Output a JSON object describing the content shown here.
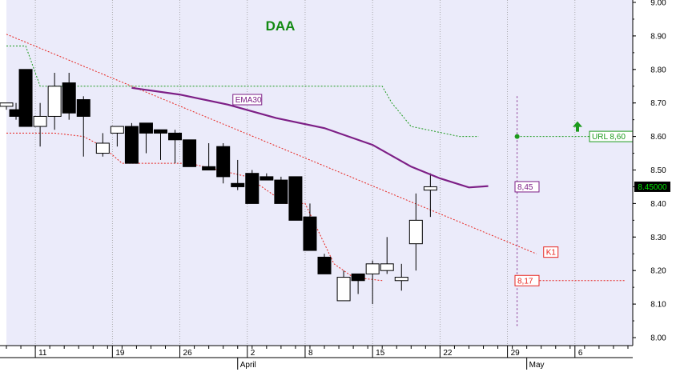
{
  "colors": {
    "plot_bg": "#ebebfa",
    "grid": "#9a9a9a",
    "candle": "#000000",
    "ema": "#7d1f86",
    "k1": "#e8251f",
    "url": "#1c9a1c",
    "title": "#138a13",
    "price_tag_bg": "#000000",
    "price_tag_text": "#00e000"
  },
  "chart_data": {
    "type": "candlestick",
    "title": "DAA",
    "ylim": [
      8.0,
      9.0
    ],
    "y_ticks": [
      "9.00",
      "8.90",
      "8.80",
      "8.70",
      "8.60",
      "8.50",
      "8.40",
      "8.30",
      "8.20",
      "8.10",
      "8.00"
    ],
    "x_ticks": [
      {
        "label": "11",
        "day": 11
      },
      {
        "label": "19",
        "day": 19
      },
      {
        "label": "26",
        "day": 26
      },
      {
        "label": "2",
        "day": 33
      },
      {
        "label": "8",
        "day": 39
      },
      {
        "label": "15",
        "day": 46
      },
      {
        "label": "22",
        "day": 53
      },
      {
        "label": "29",
        "day": 60
      },
      {
        "label": "6",
        "day": 67
      }
    ],
    "months": [
      {
        "label": "April",
        "day": 32
      },
      {
        "label": "May",
        "day": 62
      }
    ],
    "x_range": [
      8,
      73
    ],
    "candles": [
      {
        "d": 8,
        "o": 8.69,
        "h": 8.69,
        "l": 8.68,
        "c": 8.7
      },
      {
        "d": 9,
        "o": 8.68,
        "h": 8.7,
        "l": 8.65,
        "c": 8.66
      },
      {
        "d": 10,
        "o": 8.8,
        "h": 8.8,
        "l": 8.63,
        "c": 8.63
      },
      {
        "d": 11.5,
        "o": 8.63,
        "h": 8.7,
        "l": 8.57,
        "c": 8.66
      },
      {
        "d": 13,
        "o": 8.66,
        "h": 8.79,
        "l": 8.62,
        "c": 8.75
      },
      {
        "d": 14.5,
        "o": 8.76,
        "h": 8.79,
        "l": 8.65,
        "c": 8.67
      },
      {
        "d": 16,
        "o": 8.71,
        "h": 8.72,
        "l": 8.54,
        "c": 8.66
      },
      {
        "d": 18,
        "o": 8.55,
        "h": 8.61,
        "l": 8.54,
        "c": 8.58
      },
      {
        "d": 19.5,
        "o": 8.61,
        "h": 8.63,
        "l": 8.57,
        "c": 8.63
      },
      {
        "d": 21,
        "o": 8.63,
        "h": 8.64,
        "l": 8.52,
        "c": 8.52
      },
      {
        "d": 22.5,
        "o": 8.64,
        "h": 8.64,
        "l": 8.55,
        "c": 8.61
      },
      {
        "d": 24,
        "o": 8.62,
        "h": 8.62,
        "l": 8.53,
        "c": 8.61
      },
      {
        "d": 25.5,
        "o": 8.61,
        "h": 8.62,
        "l": 8.52,
        "c": 8.59
      },
      {
        "d": 27,
        "o": 8.59,
        "h": 8.59,
        "l": 8.51,
        "c": 8.51
      },
      {
        "d": 29,
        "o": 8.51,
        "h": 8.58,
        "l": 8.5,
        "c": 8.5
      },
      {
        "d": 30.5,
        "o": 8.57,
        "h": 8.58,
        "l": 8.46,
        "c": 8.48
      },
      {
        "d": 32,
        "o": 8.46,
        "h": 8.53,
        "l": 8.44,
        "c": 8.45
      },
      {
        "d": 33.5,
        "o": 8.49,
        "h": 8.5,
        "l": 8.4,
        "c": 8.4
      },
      {
        "d": 35,
        "o": 8.48,
        "h": 8.49,
        "l": 8.47,
        "c": 8.47
      },
      {
        "d": 36.5,
        "o": 8.47,
        "h": 8.48,
        "l": 8.4,
        "c": 8.4
      },
      {
        "d": 38,
        "o": 8.48,
        "h": 8.48,
        "l": 8.35,
        "c": 8.35
      },
      {
        "d": 39.5,
        "o": 8.36,
        "h": 8.4,
        "l": 8.26,
        "c": 8.26
      },
      {
        "d": 41,
        "o": 8.24,
        "h": 8.25,
        "l": 8.19,
        "c": 8.19
      },
      {
        "d": 43,
        "o": 8.11,
        "h": 8.2,
        "l": 8.11,
        "c": 8.18
      },
      {
        "d": 44.5,
        "o": 8.19,
        "h": 8.19,
        "l": 8.13,
        "c": 8.17
      },
      {
        "d": 46,
        "o": 8.19,
        "h": 8.23,
        "l": 8.1,
        "c": 8.22
      },
      {
        "d": 47.5,
        "o": 8.2,
        "h": 8.3,
        "l": 8.19,
        "c": 8.22
      },
      {
        "d": 49,
        "o": 8.17,
        "h": 8.22,
        "l": 8.14,
        "c": 8.18
      },
      {
        "d": 50.5,
        "o": 8.28,
        "h": 8.43,
        "l": 8.2,
        "c": 8.35
      },
      {
        "d": 52,
        "o": 8.44,
        "h": 8.49,
        "l": 8.36,
        "c": 8.45
      }
    ],
    "ema30": {
      "name": "EMA30",
      "points": [
        {
          "d": 21,
          "v": 8.745
        },
        {
          "d": 26,
          "v": 8.725
        },
        {
          "d": 31,
          "v": 8.695
        },
        {
          "d": 36,
          "v": 8.655
        },
        {
          "d": 41,
          "v": 8.625
        },
        {
          "d": 46,
          "v": 8.575
        },
        {
          "d": 50,
          "v": 8.51
        },
        {
          "d": 53,
          "v": 8.475
        },
        {
          "d": 56,
          "v": 8.448
        },
        {
          "d": 58,
          "v": 8.452
        }
      ],
      "label": "EMA30",
      "label_at": {
        "d": 33,
        "v": 8.71
      },
      "value_label": "8,45",
      "marker": {
        "d": 61,
        "v": 8.45
      }
    },
    "k1": {
      "name": "K1",
      "start": {
        "d": 8,
        "v": 8.905
      },
      "end": {
        "d": 63,
        "v": 8.25
      },
      "label": "K1",
      "label_at": {
        "d": 64.5,
        "v": 8.255
      }
    },
    "url_line": {
      "label": "URL 8,60",
      "steps": [
        {
          "d": 8,
          "v": 8.87
        },
        {
          "d": 10,
          "v": 8.87
        },
        {
          "d": 11.5,
          "v": 8.75
        },
        {
          "d": 47,
          "v": 8.75
        },
        {
          "d": 48,
          "v": 8.7
        },
        {
          "d": 50,
          "v": 8.63
        },
        {
          "d": 55,
          "v": 8.6
        },
        {
          "d": 57,
          "v": 8.6
        }
      ],
      "level": 8.6,
      "marker": {
        "d": 61,
        "v": 8.6
      }
    },
    "support": {
      "segments": [
        [
          {
            "d": 8,
            "v": 8.61
          },
          {
            "d": 13,
            "v": 8.61
          },
          {
            "d": 16,
            "v": 8.6
          },
          {
            "d": 18,
            "v": 8.57
          },
          {
            "d": 20,
            "v": 8.52
          },
          {
            "d": 27,
            "v": 8.52
          },
          {
            "d": 30,
            "v": 8.5
          },
          {
            "d": 33,
            "v": 8.48
          },
          {
            "d": 35,
            "v": 8.44
          },
          {
            "d": 37,
            "v": 8.4
          },
          {
            "d": 39,
            "v": 8.4
          },
          {
            "d": 41,
            "v": 8.28
          },
          {
            "d": 42,
            "v": 8.22
          },
          {
            "d": 44,
            "v": 8.18
          },
          {
            "d": 47,
            "v": 8.17
          }
        ]
      ],
      "level": 8.17,
      "value_label": "8,17",
      "marker": {
        "d": 61,
        "v": 8.17
      }
    },
    "projection_vline": {
      "d": 61,
      "from": 8.72,
      "to": 8.03
    },
    "last_price": "8.45000",
    "last_value": 8.45
  }
}
